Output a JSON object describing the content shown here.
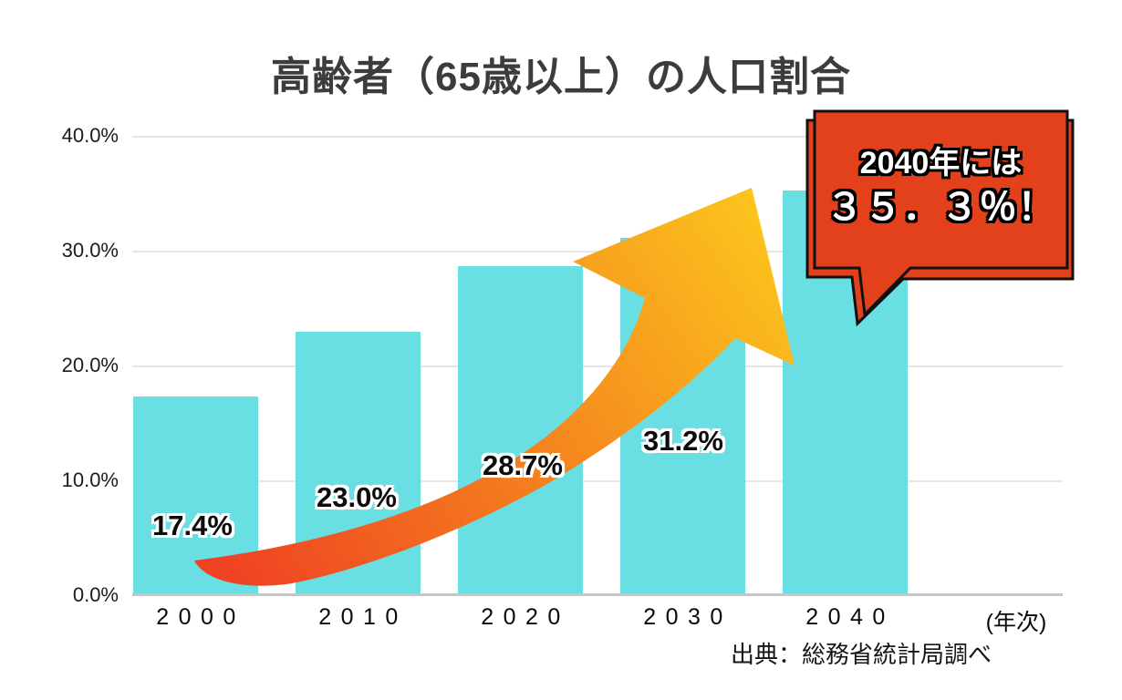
{
  "title": "高齢者（65歳以上）の人口割合",
  "chart_data": {
    "type": "bar",
    "title": "高齢者（65歳以上）の人口割合",
    "categories": [
      "2000",
      "2010",
      "2020",
      "2030",
      "2040"
    ],
    "values": [
      17.4,
      23.0,
      28.7,
      31.2,
      35.3
    ],
    "value_labels": [
      "17.4%",
      "23.0%",
      "28.7%",
      "31.2%"
    ],
    "y_ticks": [
      "40.0%",
      "30.0%",
      "20.0%",
      "10.0%",
      "0.0%"
    ],
    "ylim": [
      0,
      40
    ],
    "x_unit_label": "(年次)",
    "grid": "horizontal",
    "legend": "none",
    "bar_color": "#69DEE3",
    "gridline_color": "#E6E6E6",
    "axis_color": "#C6C6C6"
  },
  "callout": {
    "line1": "2040年には",
    "line2": "３５．３％！",
    "bg": "#E2411C",
    "border_color": "#111111",
    "text_color": "#FFFFFF"
  },
  "arrow": {
    "gradient": [
      "#EF4123",
      "#F47D1E",
      "#FCC71D"
    ]
  },
  "source": "出典：総務省統計局調べ"
}
